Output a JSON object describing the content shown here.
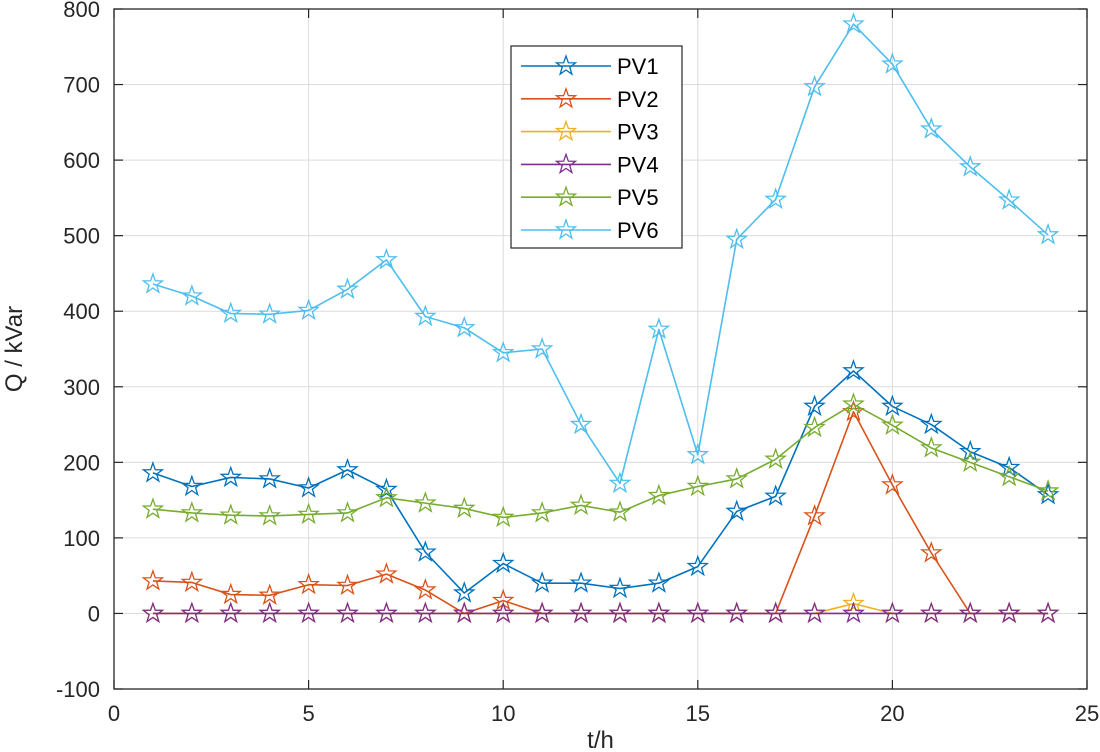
{
  "chart_data": {
    "type": "line",
    "title": "",
    "xlabel": "t/h",
    "ylabel": "Q / kVar",
    "xlim": [
      0,
      25
    ],
    "ylim": [
      -100,
      800
    ],
    "xticks": [
      0,
      5,
      10,
      15,
      20,
      25
    ],
    "yticks": [
      -100,
      0,
      100,
      200,
      300,
      400,
      500,
      600,
      700,
      800
    ],
    "grid": true,
    "legend_position": "top-center",
    "marker": "star",
    "x": [
      1,
      2,
      3,
      4,
      5,
      6,
      7,
      8,
      9,
      10,
      11,
      12,
      13,
      14,
      15,
      16,
      17,
      18,
      19,
      20,
      21,
      22,
      23,
      24
    ],
    "series": [
      {
        "name": "PV1",
        "color": "#0072BD",
        "values": [
          186,
          168,
          180,
          178,
          166,
          190,
          164,
          81,
          27,
          66,
          40,
          40,
          33,
          40,
          62,
          135,
          155,
          274,
          321,
          274,
          250,
          214,
          193,
          157
        ]
      },
      {
        "name": "PV2",
        "color": "#D95319",
        "values": [
          43,
          41,
          25,
          24,
          38,
          37,
          52,
          31,
          0,
          17,
          0,
          0,
          0,
          0,
          0,
          0,
          0,
          129,
          267,
          170,
          80,
          0,
          0,
          0
        ]
      },
      {
        "name": "PV3",
        "color": "#EDB120",
        "values": [
          0,
          0,
          0,
          0,
          0,
          0,
          0,
          0,
          0,
          0,
          0,
          0,
          0,
          0,
          0,
          0,
          0,
          0,
          13,
          0,
          0,
          0,
          0,
          0
        ]
      },
      {
        "name": "PV4",
        "color": "#7E2F8E",
        "values": [
          0,
          0,
          0,
          0,
          0,
          0,
          0,
          0,
          0,
          0,
          0,
          0,
          0,
          0,
          0,
          0,
          0,
          0,
          0,
          0,
          0,
          0,
          0,
          0
        ]
      },
      {
        "name": "PV5",
        "color": "#77AC30",
        "values": [
          138,
          133,
          130,
          129,
          131,
          133,
          153,
          146,
          139,
          127,
          133,
          143,
          134,
          156,
          168,
          178,
          204,
          246,
          277,
          249,
          219,
          200,
          181,
          162
        ]
      },
      {
        "name": "PV6",
        "color": "#4DBEEE",
        "values": [
          436,
          420,
          397,
          396,
          401,
          429,
          468,
          393,
          378,
          345,
          350,
          250,
          172,
          376,
          210,
          495,
          548,
          697,
          780,
          727,
          641,
          591,
          547,
          501
        ]
      }
    ]
  }
}
